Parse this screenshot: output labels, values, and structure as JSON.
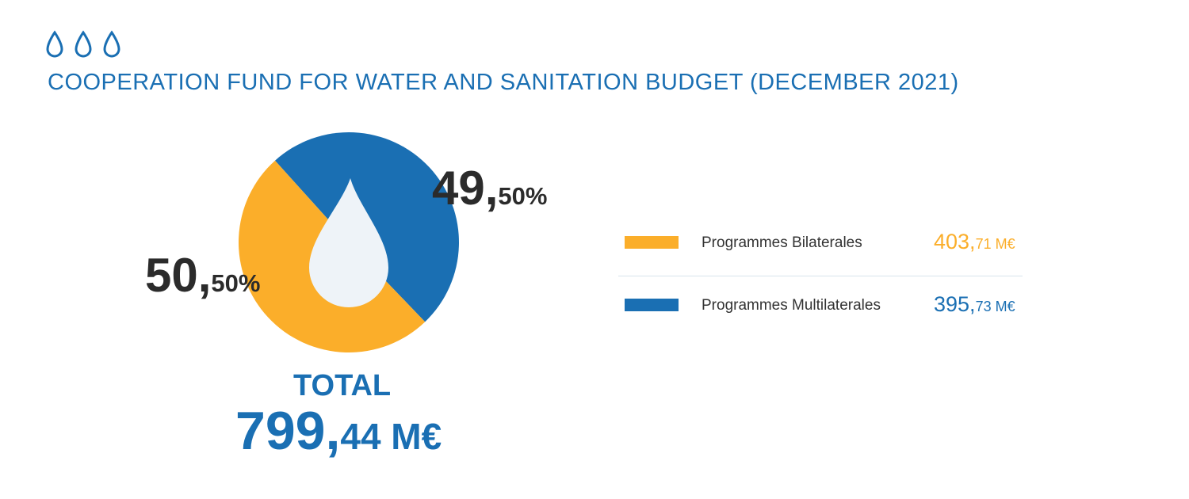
{
  "header": {
    "icon": "water-drops-icon",
    "title": "COOPERATION FUND FOR WATER AND SANITATION BUDGET (DECEMBER 2021)"
  },
  "colors": {
    "blue": "#1a6fb3",
    "orange": "#fbae2a",
    "drop": "#eef3f8",
    "text": "#2b2b2b"
  },
  "chart_data": {
    "type": "pie",
    "categories": [
      "Programmes Bilaterales",
      "Programmes Multilaterales"
    ],
    "values": [
      403.71,
      395.73
    ],
    "percentages": [
      50.5,
      49.5
    ],
    "colors": [
      "#fbae2a",
      "#1a6fb3"
    ],
    "title": "COOPERATION FUND FOR WATER AND SANITATION BUDGET (DECEMBER 2021)",
    "start_angle_deg": -42
  },
  "labels": {
    "multilateral_pct": {
      "int": "49,",
      "dec": "50%"
    },
    "bilateral_pct": {
      "int": "50,",
      "dec": "50%"
    }
  },
  "total": {
    "label": "TOTAL",
    "int": "799,",
    "dec": "44 M€"
  },
  "legend": [
    {
      "label": "Programmes Bilaterales",
      "value_int": "403,",
      "value_dec": "71 M€",
      "color": "#fbae2a"
    },
    {
      "label": "Programmes Multilaterales",
      "value_int": "395,",
      "value_dec": "73 M€",
      "color": "#1a6fb3"
    }
  ]
}
